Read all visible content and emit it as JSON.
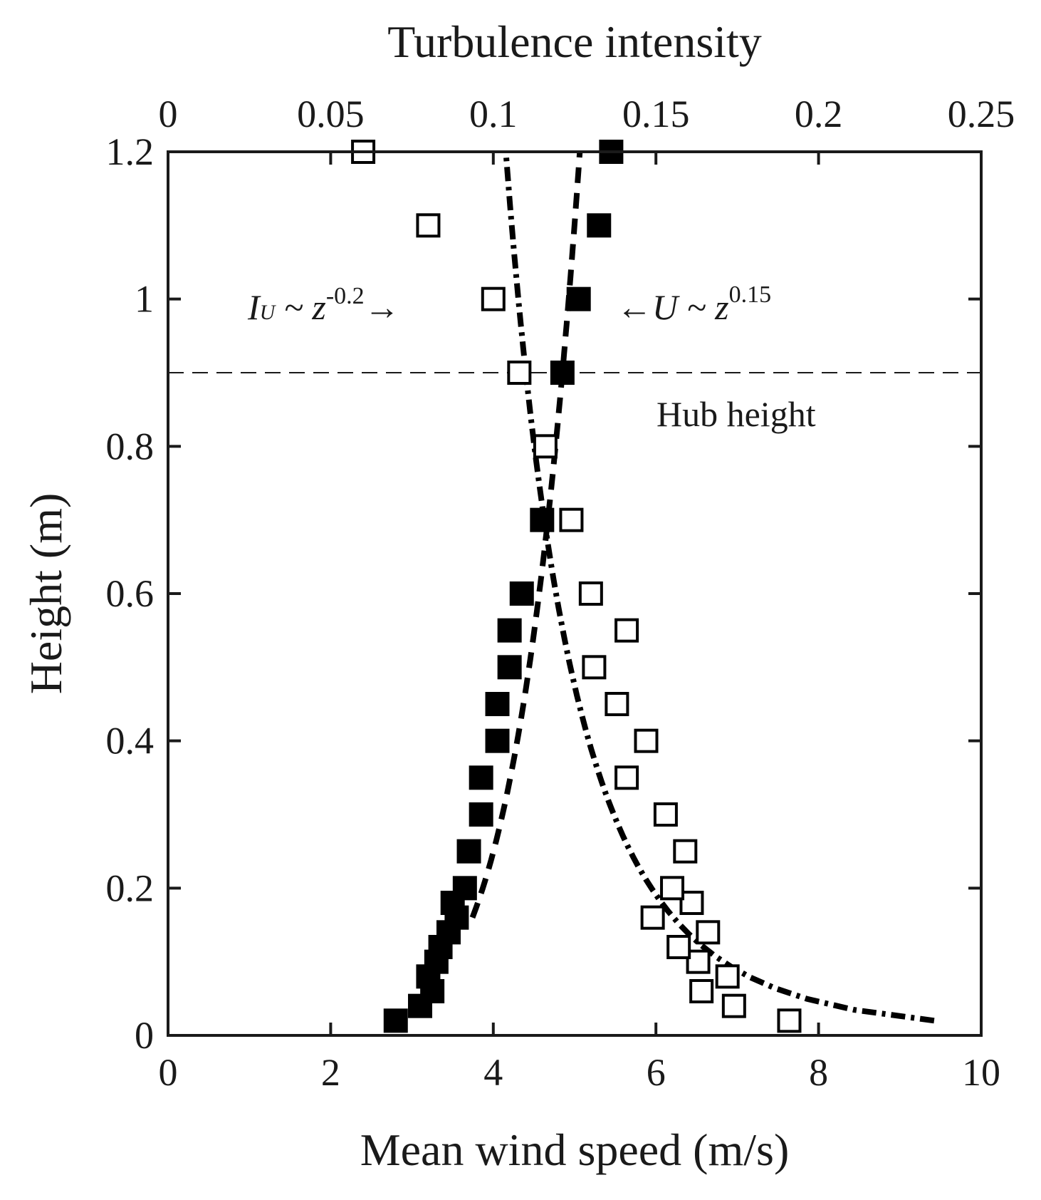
{
  "chart_data": {
    "type": "scatter",
    "title": "",
    "xlabel": "Mean wind speed (m/s)",
    "x2label": "Turbulence intensity",
    "ylabel": "Height (m)",
    "xlim": [
      0,
      10
    ],
    "x2lim": [
      0,
      0.25
    ],
    "ylim": [
      0,
      1.2
    ],
    "xticks": [
      "0",
      "2",
      "4",
      "6",
      "8",
      "10"
    ],
    "x2ticks": [
      "0",
      "0.05",
      "0.1",
      "0.15",
      "0.2",
      "0.25"
    ],
    "yticks": [
      "0",
      "0.2",
      "0.4",
      "0.6",
      "0.8",
      "1",
      "1.2"
    ],
    "grid": false,
    "hub_height": 0.9,
    "hub_label": "Hub height",
    "series": [
      {
        "name": "Mean wind speed",
        "axis": "bottom",
        "marker": "filled-square",
        "points": [
          {
            "x": 2.8,
            "y": 0.02
          },
          {
            "x": 3.1,
            "y": 0.04
          },
          {
            "x": 3.25,
            "y": 0.06
          },
          {
            "x": 3.2,
            "y": 0.08
          },
          {
            "x": 3.3,
            "y": 0.1
          },
          {
            "x": 3.35,
            "y": 0.12
          },
          {
            "x": 3.45,
            "y": 0.14
          },
          {
            "x": 3.55,
            "y": 0.16
          },
          {
            "x": 3.5,
            "y": 0.18
          },
          {
            "x": 3.65,
            "y": 0.2
          },
          {
            "x": 3.7,
            "y": 0.25
          },
          {
            "x": 3.85,
            "y": 0.3
          },
          {
            "x": 3.85,
            "y": 0.35
          },
          {
            "x": 4.05,
            "y": 0.4
          },
          {
            "x": 4.05,
            "y": 0.45
          },
          {
            "x": 4.2,
            "y": 0.5
          },
          {
            "x": 4.2,
            "y": 0.55
          },
          {
            "x": 4.35,
            "y": 0.6
          },
          {
            "x": 4.6,
            "y": 0.7
          },
          {
            "x": 4.85,
            "y": 0.9
          },
          {
            "x": 5.05,
            "y": 1.0
          },
          {
            "x": 5.3,
            "y": 1.1
          },
          {
            "x": 5.45,
            "y": 1.2
          }
        ]
      },
      {
        "name": "Turbulence intensity",
        "axis": "top",
        "marker": "open-square",
        "points": [
          {
            "x": 0.191,
            "y": 0.02
          },
          {
            "x": 0.174,
            "y": 0.04
          },
          {
            "x": 0.164,
            "y": 0.06
          },
          {
            "x": 0.172,
            "y": 0.08
          },
          {
            "x": 0.163,
            "y": 0.1
          },
          {
            "x": 0.157,
            "y": 0.12
          },
          {
            "x": 0.166,
            "y": 0.14
          },
          {
            "x": 0.149,
            "y": 0.16
          },
          {
            "x": 0.161,
            "y": 0.18
          },
          {
            "x": 0.155,
            "y": 0.2
          },
          {
            "x": 0.159,
            "y": 0.25
          },
          {
            "x": 0.153,
            "y": 0.3
          },
          {
            "x": 0.141,
            "y": 0.35
          },
          {
            "x": 0.147,
            "y": 0.4
          },
          {
            "x": 0.138,
            "y": 0.45
          },
          {
            "x": 0.131,
            "y": 0.5
          },
          {
            "x": 0.141,
            "y": 0.55
          },
          {
            "x": 0.13,
            "y": 0.6
          },
          {
            "x": 0.124,
            "y": 0.7
          },
          {
            "x": 0.116,
            "y": 0.8
          },
          {
            "x": 0.108,
            "y": 0.9
          },
          {
            "x": 0.1,
            "y": 1.0
          },
          {
            "x": 0.08,
            "y": 1.1
          },
          {
            "x": 0.06,
            "y": 1.2
          }
        ]
      }
    ],
    "fits": [
      {
        "name": "U ~ z^0.15",
        "axis": "bottom",
        "style": "dashed",
        "ref_value": 4.85,
        "ref_z": 0.9,
        "exponent": 0.15,
        "z_range": [
          0.16,
          1.2
        ]
      },
      {
        "name": "I_U ~ z^-0.2",
        "axis": "top",
        "style": "dash-dot",
        "ref_value": 0.11,
        "ref_z": 0.9,
        "exponent": -0.2,
        "z_range": [
          0.02,
          1.2
        ]
      }
    ],
    "annotations": {
      "iu": {
        "base": "I",
        "sub": "U",
        "op": " ~ z",
        "sup": "-0.2",
        "arrow": "→"
      },
      "u": {
        "arrow": "←",
        "text": "U ~ z",
        "sup": "0.15"
      }
    }
  }
}
